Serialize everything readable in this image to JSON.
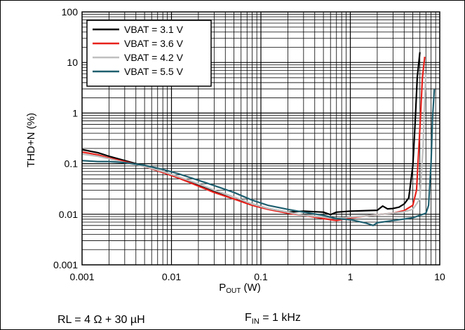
{
  "chart_data": {
    "type": "line",
    "xscale": "log",
    "yscale": "log",
    "xlim": [
      0.001,
      10
    ],
    "ylim": [
      0.001,
      100
    ],
    "xlabel_main": "P",
    "xlabel_sub": "OUT",
    "xlabel_unit": " (W)",
    "ylabel": "THD+N (%)",
    "grid": true,
    "legend_position": "top-left",
    "xticks": [
      {
        "value": 0.001,
        "label": "0.001"
      },
      {
        "value": 0.01,
        "label": "0.01"
      },
      {
        "value": 0.1,
        "label": "0.1"
      },
      {
        "value": 1,
        "label": "1"
      },
      {
        "value": 10,
        "label": "10"
      }
    ],
    "yticks": [
      {
        "value": 0.001,
        "label": "0.001"
      },
      {
        "value": 0.01,
        "label": "0.01"
      },
      {
        "value": 0.1,
        "label": "0.1"
      },
      {
        "value": 1,
        "label": "1"
      },
      {
        "value": 10,
        "label": "10"
      },
      {
        "value": 100,
        "label": "100"
      }
    ],
    "series": [
      {
        "name": "VBAT = 3.1 V",
        "color": "#000000",
        "points": [
          [
            0.001,
            0.19
          ],
          [
            0.0015,
            0.165
          ],
          [
            0.002,
            0.14
          ],
          [
            0.003,
            0.115
          ],
          [
            0.005,
            0.09
          ],
          [
            0.008,
            0.068
          ],
          [
            0.012,
            0.052
          ],
          [
            0.02,
            0.037
          ],
          [
            0.03,
            0.028
          ],
          [
            0.05,
            0.02
          ],
          [
            0.08,
            0.016
          ],
          [
            0.12,
            0.013
          ],
          [
            0.2,
            0.011
          ],
          [
            0.3,
            0.0115
          ],
          [
            0.5,
            0.011
          ],
          [
            0.6,
            0.0098
          ],
          [
            0.7,
            0.011
          ],
          [
            1.0,
            0.0115
          ],
          [
            1.5,
            0.0118
          ],
          [
            2.0,
            0.012
          ],
          [
            2.3,
            0.0145
          ],
          [
            2.6,
            0.0128
          ],
          [
            3.0,
            0.013
          ],
          [
            3.5,
            0.0138
          ],
          [
            4.0,
            0.016
          ],
          [
            4.5,
            0.021
          ],
          [
            5.0,
            0.09
          ],
          [
            5.3,
            0.6
          ],
          [
            5.6,
            5
          ],
          [
            6.0,
            16
          ]
        ]
      },
      {
        "name": "VBAT = 3.6 V",
        "color": "#e8211b",
        "points": [
          [
            0.001,
            0.17
          ],
          [
            0.0015,
            0.15
          ],
          [
            0.002,
            0.13
          ],
          [
            0.003,
            0.11
          ],
          [
            0.005,
            0.088
          ],
          [
            0.008,
            0.067
          ],
          [
            0.012,
            0.052
          ],
          [
            0.02,
            0.036
          ],
          [
            0.03,
            0.027
          ],
          [
            0.05,
            0.02
          ],
          [
            0.08,
            0.015
          ],
          [
            0.12,
            0.0125
          ],
          [
            0.2,
            0.0105
          ],
          [
            0.3,
            0.0095
          ],
          [
            0.5,
            0.0082
          ],
          [
            0.7,
            0.0075
          ],
          [
            1.0,
            0.0085
          ],
          [
            1.5,
            0.0092
          ],
          [
            2.0,
            0.0098
          ],
          [
            3.0,
            0.0105
          ],
          [
            4.0,
            0.0118
          ],
          [
            5.0,
            0.015
          ],
          [
            5.5,
            0.03
          ],
          [
            6.0,
            0.5
          ],
          [
            6.4,
            5
          ],
          [
            6.8,
            13
          ]
        ]
      },
      {
        "name": "VBAT = 4.2 V",
        "color": "#bfbfbf",
        "points": [
          [
            0.001,
            0.155
          ],
          [
            0.0015,
            0.14
          ],
          [
            0.002,
            0.125
          ],
          [
            0.003,
            0.105
          ],
          [
            0.005,
            0.088
          ],
          [
            0.008,
            0.07
          ],
          [
            0.012,
            0.055
          ],
          [
            0.02,
            0.04
          ],
          [
            0.03,
            0.03
          ],
          [
            0.05,
            0.022
          ],
          [
            0.08,
            0.016
          ],
          [
            0.12,
            0.013
          ],
          [
            0.2,
            0.011
          ],
          [
            0.3,
            0.0095
          ],
          [
            0.5,
            0.0088
          ],
          [
            0.7,
            0.0082
          ],
          [
            1.0,
            0.0088
          ],
          [
            1.5,
            0.0092
          ],
          [
            2.0,
            0.0098
          ],
          [
            3.0,
            0.0105
          ],
          [
            4.0,
            0.0112
          ],
          [
            5.0,
            0.0125
          ],
          [
            6.0,
            0.02
          ],
          [
            6.5,
            0.2
          ],
          [
            6.8,
            2
          ],
          [
            7.0,
            6
          ]
        ]
      },
      {
        "name": "VBAT = 5.5 V",
        "color": "#1e5f6f",
        "points": [
          [
            0.001,
            0.115
          ],
          [
            0.0015,
            0.11
          ],
          [
            0.002,
            0.11
          ],
          [
            0.003,
            0.105
          ],
          [
            0.005,
            0.093
          ],
          [
            0.008,
            0.077
          ],
          [
            0.012,
            0.063
          ],
          [
            0.02,
            0.047
          ],
          [
            0.03,
            0.037
          ],
          [
            0.05,
            0.027
          ],
          [
            0.08,
            0.019
          ],
          [
            0.12,
            0.015
          ],
          [
            0.2,
            0.0125
          ],
          [
            0.3,
            0.011
          ],
          [
            0.5,
            0.0095
          ],
          [
            0.7,
            0.0082
          ],
          [
            1.0,
            0.0078
          ],
          [
            1.5,
            0.0067
          ],
          [
            1.8,
            0.006
          ],
          [
            2.0,
            0.0068
          ],
          [
            3.0,
            0.0075
          ],
          [
            5.0,
            0.0085
          ],
          [
            7.0,
            0.0105
          ],
          [
            7.5,
            0.015
          ],
          [
            8.0,
            0.1
          ],
          [
            8.3,
            0.8
          ],
          [
            8.7,
            3
          ]
        ]
      }
    ],
    "annotations": {
      "load": "RL = 4  Ω  + 30 µH",
      "fin_main": "F",
      "fin_sub": "IN",
      "fin_rest": " = 1 kHz"
    }
  }
}
